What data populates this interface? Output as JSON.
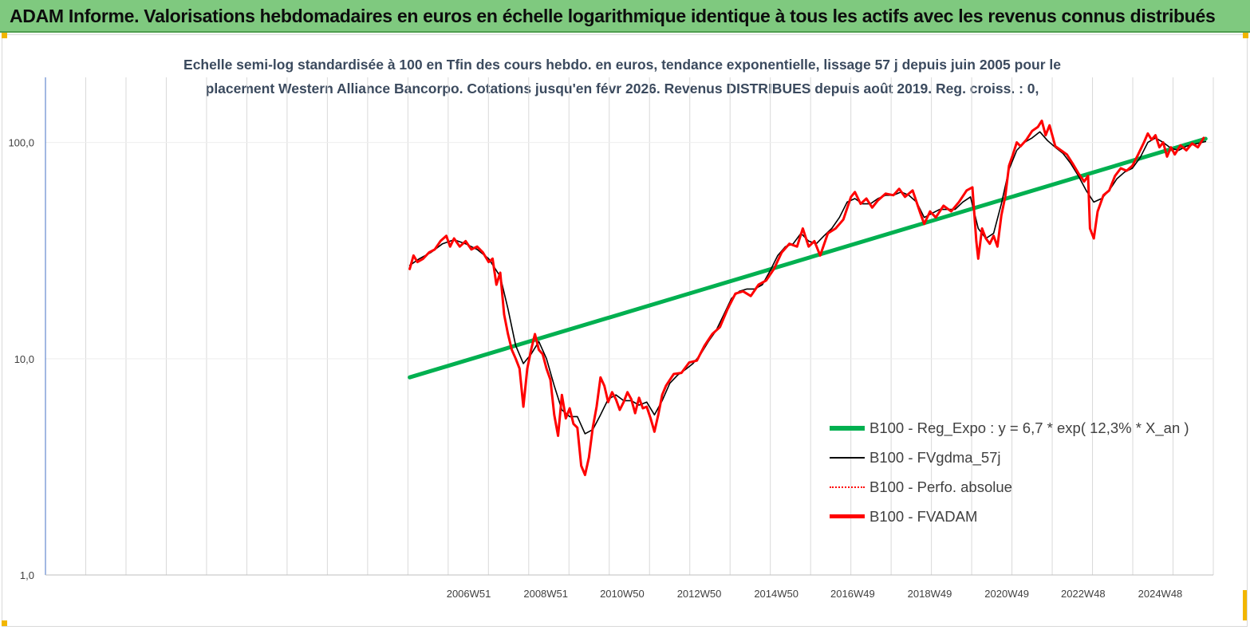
{
  "header": {
    "title": "ADAM Informe. Valorisations hebdomadaires en euros en échelle logarithmique identique à tous les actifs avec les revenus connus distribués"
  },
  "chart_data": {
    "type": "line",
    "title_lines": [
      "Echelle semi-log standardisée à 100 en Tfin des cours hebdo. en euros, tendance exponentielle, lissage 57 j depuis juin 2005 pour le",
      "placement Western Alliance Bancorpo. Cotations jusqu'en févr 2026. Revenus DISTRIBUES depuis août 2019. Reg. croiss. : 0,"
    ],
    "y_scale": "log",
    "ylim": [
      1,
      200
    ],
    "y_ticks": [
      "1,0",
      "10,0",
      "100,0"
    ],
    "x_ticks": [
      "2006W51",
      "2008W51",
      "2010W50",
      "2012W50",
      "2014W50",
      "2016W49",
      "2018W49",
      "2020W49",
      "2022W48",
      "2024W48"
    ],
    "xlim": [
      1996.0,
      2026.3
    ],
    "grid": "vertical",
    "legend_position": "right",
    "series": [
      {
        "name": "B100 - Reg_Expo : y = 6,7 * exp( 12,3% *  X_an )",
        "color": "#00b050",
        "style": "solid-thick",
        "points": [
          [
            2005.45,
            8.2
          ],
          [
            2026.1,
            104
          ]
        ]
      },
      {
        "name": "B100 - FVgdma_57j",
        "color": "#000000",
        "style": "solid-thin",
        "points": [
          [
            2005.45,
            27
          ],
          [
            2005.7,
            29
          ],
          [
            2006.0,
            31
          ],
          [
            2006.3,
            34
          ],
          [
            2006.6,
            35.5
          ],
          [
            2006.9,
            34
          ],
          [
            2007.2,
            32
          ],
          [
            2007.5,
            29
          ],
          [
            2007.8,
            24
          ],
          [
            2008.0,
            17
          ],
          [
            2008.2,
            11.5
          ],
          [
            2008.4,
            9.5
          ],
          [
            2008.6,
            10.5
          ],
          [
            2008.8,
            12
          ],
          [
            2009.0,
            10
          ],
          [
            2009.2,
            7.5
          ],
          [
            2009.4,
            5.8
          ],
          [
            2009.6,
            5.4
          ],
          [
            2009.8,
            5.4
          ],
          [
            2010.0,
            4.5
          ],
          [
            2010.2,
            4.7
          ],
          [
            2010.4,
            5.5
          ],
          [
            2010.6,
            6.5
          ],
          [
            2010.8,
            6.8
          ],
          [
            2011.0,
            6.4
          ],
          [
            2011.2,
            6.4
          ],
          [
            2011.4,
            6.1
          ],
          [
            2011.6,
            6.3
          ],
          [
            2011.8,
            5.5
          ],
          [
            2012.0,
            6.4
          ],
          [
            2012.2,
            7.7
          ],
          [
            2012.4,
            8.4
          ],
          [
            2012.6,
            8.9
          ],
          [
            2012.8,
            9.5
          ],
          [
            2013.0,
            10.5
          ],
          [
            2013.2,
            12
          ],
          [
            2013.4,
            13.5
          ],
          [
            2013.6,
            16
          ],
          [
            2013.8,
            19
          ],
          [
            2014.0,
            20.5
          ],
          [
            2014.2,
            21
          ],
          [
            2014.4,
            21
          ],
          [
            2014.6,
            22
          ],
          [
            2014.8,
            25.5
          ],
          [
            2015.0,
            30
          ],
          [
            2015.2,
            33
          ],
          [
            2015.4,
            34
          ],
          [
            2015.6,
            38
          ],
          [
            2015.8,
            35
          ],
          [
            2016.0,
            34
          ],
          [
            2016.2,
            37
          ],
          [
            2016.4,
            40
          ],
          [
            2016.6,
            45
          ],
          [
            2016.8,
            53
          ],
          [
            2017.0,
            55
          ],
          [
            2017.2,
            52
          ],
          [
            2017.4,
            52
          ],
          [
            2017.6,
            55
          ],
          [
            2017.8,
            57
          ],
          [
            2018.0,
            57
          ],
          [
            2018.2,
            59
          ],
          [
            2018.4,
            57
          ],
          [
            2018.6,
            53
          ],
          [
            2018.8,
            45
          ],
          [
            2019.0,
            47
          ],
          [
            2019.2,
            49
          ],
          [
            2019.4,
            49
          ],
          [
            2019.6,
            49
          ],
          [
            2019.8,
            53
          ],
          [
            2020.0,
            56
          ],
          [
            2020.2,
            40
          ],
          [
            2020.4,
            36
          ],
          [
            2020.6,
            38
          ],
          [
            2020.8,
            52
          ],
          [
            2021.0,
            75
          ],
          [
            2021.2,
            92
          ],
          [
            2021.4,
            100
          ],
          [
            2021.6,
            105
          ],
          [
            2021.8,
            112
          ],
          [
            2022.0,
            102
          ],
          [
            2022.2,
            95
          ],
          [
            2022.4,
            89
          ],
          [
            2022.6,
            80
          ],
          [
            2022.8,
            70
          ],
          [
            2023.0,
            60
          ],
          [
            2023.2,
            53
          ],
          [
            2023.4,
            55
          ],
          [
            2023.6,
            60
          ],
          [
            2023.8,
            68
          ],
          [
            2024.0,
            73
          ],
          [
            2024.2,
            76
          ],
          [
            2024.4,
            85
          ],
          [
            2024.6,
            100
          ],
          [
            2024.8,
            105
          ],
          [
            2025.0,
            100
          ],
          [
            2025.2,
            94
          ],
          [
            2025.4,
            92
          ],
          [
            2025.6,
            96
          ],
          [
            2025.8,
            98
          ],
          [
            2026.1,
            101
          ]
        ]
      },
      {
        "name": "B100 - Perfo. absolue",
        "color": "#ff0000",
        "style": "dotted",
        "points": []
      },
      {
        "name": "B100 - FVADAM",
        "color": "#ff0000",
        "style": "solid-thick",
        "points": [
          [
            2005.45,
            26
          ],
          [
            2005.55,
            30
          ],
          [
            2005.65,
            28
          ],
          [
            2005.8,
            29
          ],
          [
            2005.95,
            31
          ],
          [
            2006.1,
            32
          ],
          [
            2006.25,
            35
          ],
          [
            2006.4,
            37
          ],
          [
            2006.5,
            33
          ],
          [
            2006.6,
            36
          ],
          [
            2006.75,
            33
          ],
          [
            2006.9,
            35
          ],
          [
            2007.05,
            32
          ],
          [
            2007.2,
            33
          ],
          [
            2007.35,
            31
          ],
          [
            2007.5,
            28
          ],
          [
            2007.6,
            29
          ],
          [
            2007.7,
            22
          ],
          [
            2007.8,
            25
          ],
          [
            2007.9,
            16
          ],
          [
            2008.0,
            13
          ],
          [
            2008.1,
            11
          ],
          [
            2008.2,
            10
          ],
          [
            2008.3,
            9
          ],
          [
            2008.4,
            6
          ],
          [
            2008.5,
            9
          ],
          [
            2008.6,
            11
          ],
          [
            2008.7,
            13
          ],
          [
            2008.8,
            11
          ],
          [
            2008.9,
            10.5
          ],
          [
            2009.0,
            9
          ],
          [
            2009.1,
            8
          ],
          [
            2009.2,
            5.5
          ],
          [
            2009.3,
            4.4
          ],
          [
            2009.4,
            6.8
          ],
          [
            2009.5,
            5.3
          ],
          [
            2009.6,
            5.9
          ],
          [
            2009.7,
            5.0
          ],
          [
            2009.8,
            4.8
          ],
          [
            2009.9,
            3.2
          ],
          [
            2010.0,
            2.9
          ],
          [
            2010.1,
            3.5
          ],
          [
            2010.2,
            4.8
          ],
          [
            2010.3,
            6.0
          ],
          [
            2010.4,
            8.2
          ],
          [
            2010.5,
            7.5
          ],
          [
            2010.6,
            6.3
          ],
          [
            2010.7,
            7.0
          ],
          [
            2010.8,
            6.5
          ],
          [
            2010.9,
            5.8
          ],
          [
            2011.0,
            6.3
          ],
          [
            2011.1,
            7.0
          ],
          [
            2011.2,
            6.5
          ],
          [
            2011.3,
            5.6
          ],
          [
            2011.4,
            6.6
          ],
          [
            2011.5,
            5.9
          ],
          [
            2011.6,
            6.0
          ],
          [
            2011.7,
            5.3
          ],
          [
            2011.8,
            4.6
          ],
          [
            2011.9,
            5.5
          ],
          [
            2012.0,
            6.8
          ],
          [
            2012.1,
            7.5
          ],
          [
            2012.3,
            8.5
          ],
          [
            2012.5,
            8.6
          ],
          [
            2012.7,
            9.6
          ],
          [
            2012.9,
            9.8
          ],
          [
            2013.1,
            11.5
          ],
          [
            2013.3,
            13
          ],
          [
            2013.5,
            14
          ],
          [
            2013.7,
            17
          ],
          [
            2013.9,
            20
          ],
          [
            2014.1,
            20.5
          ],
          [
            2014.3,
            19.5
          ],
          [
            2014.5,
            22
          ],
          [
            2014.7,
            23
          ],
          [
            2014.9,
            26
          ],
          [
            2015.1,
            31
          ],
          [
            2015.3,
            34
          ],
          [
            2015.5,
            33
          ],
          [
            2015.65,
            40
          ],
          [
            2015.8,
            33
          ],
          [
            2015.95,
            35
          ],
          [
            2016.1,
            30
          ],
          [
            2016.3,
            38
          ],
          [
            2016.5,
            40
          ],
          [
            2016.7,
            44
          ],
          [
            2016.9,
            56
          ],
          [
            2017.0,
            59
          ],
          [
            2017.15,
            52
          ],
          [
            2017.3,
            55
          ],
          [
            2017.45,
            50
          ],
          [
            2017.6,
            54
          ],
          [
            2017.8,
            58
          ],
          [
            2018.0,
            57
          ],
          [
            2018.15,
            61
          ],
          [
            2018.3,
            56
          ],
          [
            2018.5,
            60
          ],
          [
            2018.7,
            47
          ],
          [
            2018.8,
            42
          ],
          [
            2018.95,
            48
          ],
          [
            2019.1,
            45
          ],
          [
            2019.3,
            51
          ],
          [
            2019.5,
            48
          ],
          [
            2019.7,
            53
          ],
          [
            2019.9,
            60
          ],
          [
            2020.05,
            62
          ],
          [
            2020.15,
            35
          ],
          [
            2020.2,
            29
          ],
          [
            2020.3,
            40
          ],
          [
            2020.4,
            36
          ],
          [
            2020.5,
            34
          ],
          [
            2020.6,
            37
          ],
          [
            2020.7,
            33
          ],
          [
            2020.8,
            46
          ],
          [
            2020.9,
            56
          ],
          [
            2021.0,
            78
          ],
          [
            2021.1,
            88
          ],
          [
            2021.2,
            100
          ],
          [
            2021.3,
            96
          ],
          [
            2021.45,
            103
          ],
          [
            2021.6,
            113
          ],
          [
            2021.75,
            118
          ],
          [
            2021.85,
            126
          ],
          [
            2021.95,
            108
          ],
          [
            2022.05,
            120
          ],
          [
            2022.2,
            96
          ],
          [
            2022.35,
            92
          ],
          [
            2022.5,
            88
          ],
          [
            2022.65,
            80
          ],
          [
            2022.8,
            72
          ],
          [
            2022.95,
            66
          ],
          [
            2023.05,
            70
          ],
          [
            2023.1,
            40
          ],
          [
            2023.2,
            36
          ],
          [
            2023.3,
            48
          ],
          [
            2023.45,
            57
          ],
          [
            2023.6,
            60
          ],
          [
            2023.75,
            70
          ],
          [
            2023.9,
            76
          ],
          [
            2024.05,
            74
          ],
          [
            2024.2,
            78
          ],
          [
            2024.35,
            88
          ],
          [
            2024.5,
            100
          ],
          [
            2024.6,
            110
          ],
          [
            2024.7,
            103
          ],
          [
            2024.8,
            108
          ],
          [
            2024.9,
            95
          ],
          [
            2025.0,
            100
          ],
          [
            2025.1,
            86
          ],
          [
            2025.2,
            95
          ],
          [
            2025.3,
            88
          ],
          [
            2025.45,
            97
          ],
          [
            2025.6,
            92
          ],
          [
            2025.75,
            99
          ],
          [
            2025.9,
            95
          ],
          [
            2026.05,
            105
          ]
        ]
      }
    ]
  },
  "colors": {
    "banner_bg": "#7fc97f",
    "axis": "#4472c4",
    "grid": "#d9d9d9",
    "corner_marker": "#f2b600"
  }
}
